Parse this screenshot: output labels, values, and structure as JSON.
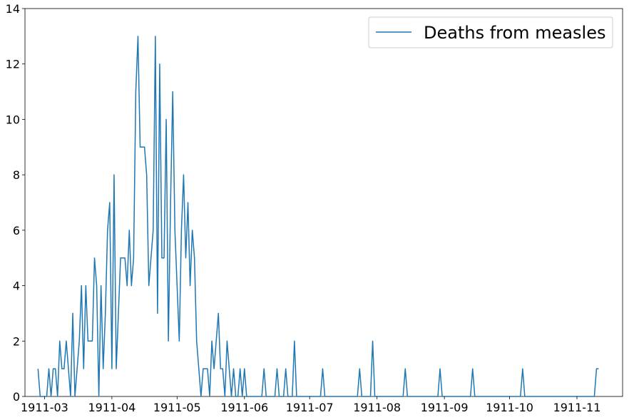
{
  "chart_data": {
    "type": "line",
    "title": "",
    "xlabel": "",
    "ylabel": "",
    "x_axis": {
      "type": "date",
      "range": [
        "1911-02-20",
        "1911-11-22"
      ],
      "ticks": [
        "1911-03-01",
        "1911-04-01",
        "1911-05-01",
        "1911-06-01",
        "1911-07-01",
        "1911-08-01",
        "1911-09-01",
        "1911-10-01",
        "1911-11-01"
      ],
      "tick_labels": [
        "1911-03",
        "1911-04",
        "1911-05",
        "1911-06",
        "1911-07",
        "1911-08",
        "1911-09",
        "1911-10",
        "1911-11"
      ]
    },
    "y_axis": {
      "range": [
        0,
        14
      ],
      "ticks": [
        0,
        2,
        4,
        6,
        8,
        10,
        12,
        14
      ],
      "tick_labels": [
        "0",
        "2",
        "4",
        "6",
        "8",
        "10",
        "12",
        "14"
      ]
    },
    "grid": false,
    "legend": {
      "placement": "top-right"
    },
    "series": [
      {
        "name": "Deaths from measles",
        "color": "#1f77b4",
        "x": [
          "1911-02-26",
          "1911-02-27",
          "1911-02-28",
          "1911-03-01",
          "1911-03-02",
          "1911-03-03",
          "1911-03-04",
          "1911-03-05",
          "1911-03-06",
          "1911-03-07",
          "1911-03-08",
          "1911-03-09",
          "1911-03-10",
          "1911-03-11",
          "1911-03-12",
          "1911-03-13",
          "1911-03-14",
          "1911-03-15",
          "1911-03-16",
          "1911-03-17",
          "1911-03-18",
          "1911-03-19",
          "1911-03-20",
          "1911-03-21",
          "1911-03-22",
          "1911-03-23",
          "1911-03-24",
          "1911-03-25",
          "1911-03-26",
          "1911-03-27",
          "1911-03-28",
          "1911-03-29",
          "1911-03-30",
          "1911-03-31",
          "1911-04-01",
          "1911-04-02",
          "1911-04-03",
          "1911-04-04",
          "1911-04-05",
          "1911-04-06",
          "1911-04-07",
          "1911-04-08",
          "1911-04-09",
          "1911-04-10",
          "1911-04-11",
          "1911-04-12",
          "1911-04-13",
          "1911-04-14",
          "1911-04-15",
          "1911-04-16",
          "1911-04-17",
          "1911-04-18",
          "1911-04-19",
          "1911-04-20",
          "1911-04-21",
          "1911-04-22",
          "1911-04-23",
          "1911-04-24",
          "1911-04-25",
          "1911-04-26",
          "1911-04-27",
          "1911-04-28",
          "1911-04-29",
          "1911-04-30",
          "1911-05-01",
          "1911-05-02",
          "1911-05-03",
          "1911-05-04",
          "1911-05-05",
          "1911-05-06",
          "1911-05-07",
          "1911-05-08",
          "1911-05-09",
          "1911-05-10",
          "1911-05-11",
          "1911-05-12",
          "1911-05-13",
          "1911-05-14",
          "1911-05-15",
          "1911-05-16",
          "1911-05-17",
          "1911-05-18",
          "1911-05-19",
          "1911-05-20",
          "1911-05-21",
          "1911-05-22",
          "1911-05-23",
          "1911-05-24",
          "1911-05-25",
          "1911-05-26",
          "1911-05-27",
          "1911-05-28",
          "1911-05-29",
          "1911-05-30",
          "1911-05-31",
          "1911-06-01",
          "1911-06-02",
          "1911-06-03",
          "1911-06-04",
          "1911-06-05",
          "1911-06-06",
          "1911-06-07",
          "1911-06-08",
          "1911-06-09",
          "1911-06-10",
          "1911-06-11",
          "1911-06-12",
          "1911-06-13",
          "1911-06-14",
          "1911-06-15",
          "1911-06-16",
          "1911-06-17",
          "1911-06-18",
          "1911-06-19",
          "1911-06-20",
          "1911-06-21",
          "1911-06-22",
          "1911-06-23",
          "1911-06-24",
          "1911-06-25",
          "1911-06-26",
          "1911-06-27",
          "1911-06-28",
          "1911-06-29",
          "1911-07-06",
          "1911-07-07",
          "1911-07-08",
          "1911-07-23",
          "1911-07-24",
          "1911-07-25",
          "1911-07-29",
          "1911-07-30",
          "1911-07-31",
          "1911-08-13",
          "1911-08-14",
          "1911-08-15",
          "1911-08-29",
          "1911-08-30",
          "1911-08-31",
          "1911-09-13",
          "1911-09-14",
          "1911-09-15",
          "1911-10-06",
          "1911-10-07",
          "1911-10-08",
          "1911-11-09",
          "1911-11-10",
          "1911-11-11"
        ],
        "values": [
          1,
          0,
          0,
          0,
          0,
          1,
          0,
          1,
          1,
          0,
          2,
          1,
          1,
          2,
          1,
          0,
          3,
          0,
          1,
          2,
          4,
          1,
          4,
          2,
          2,
          2,
          5,
          4,
          0,
          4,
          1,
          3,
          6,
          7,
          1,
          8,
          1,
          3,
          5,
          5,
          5,
          4,
          6,
          4,
          5,
          11,
          13,
          9,
          9,
          9,
          8,
          4,
          5,
          6,
          13,
          3,
          12,
          5,
          5,
          10,
          2,
          7,
          11,
          6,
          4,
          2,
          6,
          8,
          5,
          7,
          4,
          6,
          5,
          2,
          1,
          0,
          1,
          1,
          1,
          0,
          2,
          1,
          2,
          3,
          1,
          1,
          0,
          2,
          1,
          0,
          1,
          0,
          0,
          1,
          0,
          1,
          0,
          0,
          0,
          0,
          0,
          0,
          0,
          0,
          1,
          0,
          0,
          0,
          0,
          0,
          1,
          0,
          0,
          0,
          1,
          0,
          0,
          0,
          2,
          0,
          0,
          0,
          0,
          0,
          0,
          1,
          0,
          0,
          1,
          0,
          0,
          2,
          0,
          0,
          1,
          0,
          0,
          1,
          0,
          0,
          1,
          0,
          0,
          1,
          0,
          0,
          1,
          1
        ]
      }
    ]
  }
}
